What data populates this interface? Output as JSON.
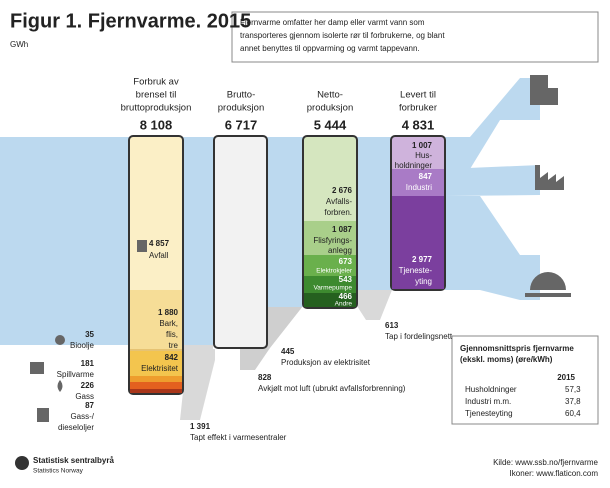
{
  "header": {
    "title": "Figur 1. Fjernvarme. 2015",
    "unit": "GWh"
  },
  "info": [
    "Fjernvarme omfatter her damp eller varmt vann som",
    "transporteres gjennom isolerte rør til forbrukerne, og blant",
    "annet benyttes til oppvarming og varmt tappevann."
  ],
  "columns": [
    {
      "heading": [
        "Forbruk av",
        "brensel til",
        "bruttoproduksjon"
      ],
      "total": "8 108",
      "parts": [
        {
          "value": "4 857",
          "text": [
            "Avfall"
          ]
        },
        {
          "value": "1 880",
          "text": [
            "Bark,",
            "flis,",
            "tre"
          ]
        },
        {
          "value": "35",
          "text": [
            "Bioolje"
          ]
        },
        {
          "value": "842",
          "text": [
            "Elektrisitet"
          ]
        },
        {
          "value": "181",
          "text": [
            "Spillvarme"
          ]
        },
        {
          "value": "226",
          "text": [
            "Gass"
          ]
        },
        {
          "value": "87",
          "text": [
            "Gass-/",
            "dieseloljer"
          ]
        }
      ]
    },
    {
      "heading": [
        "Brutto-",
        "produksjon"
      ],
      "total": "6 717"
    },
    {
      "heading": [
        "Netto-",
        "produksjon"
      ],
      "total": "5 444",
      "parts": [
        {
          "value": "2 676",
          "text": [
            "Avfalls-",
            "forbren."
          ]
        },
        {
          "value": "1 087",
          "text": [
            "Flisfyrings-",
            "anlegg"
          ]
        },
        {
          "value": "673",
          "text": [
            "Elektrokjeler"
          ]
        },
        {
          "value": "543",
          "text": [
            "Varmepumpe"
          ]
        },
        {
          "value": "466",
          "text": [
            "Andre"
          ]
        }
      ]
    },
    {
      "heading": [
        "Levert til",
        "forbruker"
      ],
      "total": "4 831",
      "parts": [
        {
          "value": "1 007",
          "text": [
            "Hus-",
            "holdninger"
          ]
        },
        {
          "value": "847",
          "text": [
            "Industri"
          ]
        },
        {
          "value": "2 977",
          "text": [
            "Tjeneste-",
            "yting"
          ]
        }
      ]
    }
  ],
  "losses": [
    {
      "value": "613",
      "text": "Tap i fordelingsnett"
    },
    {
      "value": "445",
      "text": "Produksjon av elektrisitet"
    },
    {
      "value": "828",
      "text": "Avkjølt mot luft (ubrukt avfallsforbrenning)"
    },
    {
      "value": "1 391",
      "text": "Tapt effekt i varmesentraler"
    }
  ],
  "price": {
    "title": [
      "Gjennomsnittspris fjernvarme",
      "(ekskl. moms) (øre/kWh)"
    ],
    "year": "2015",
    "rows": [
      [
        "Husholdninger",
        "57,3"
      ],
      [
        "Industri m.m.",
        "37,8"
      ],
      [
        "Tjenesteyting",
        "60,4"
      ]
    ]
  },
  "footer": {
    "source": "Kilde: www.ssb.no/fjernvarme",
    "icons": "Ikoner: www.flaticon.com",
    "logo": [
      "Statistisk sentralbyrå",
      "Statistics Norway"
    ]
  }
}
